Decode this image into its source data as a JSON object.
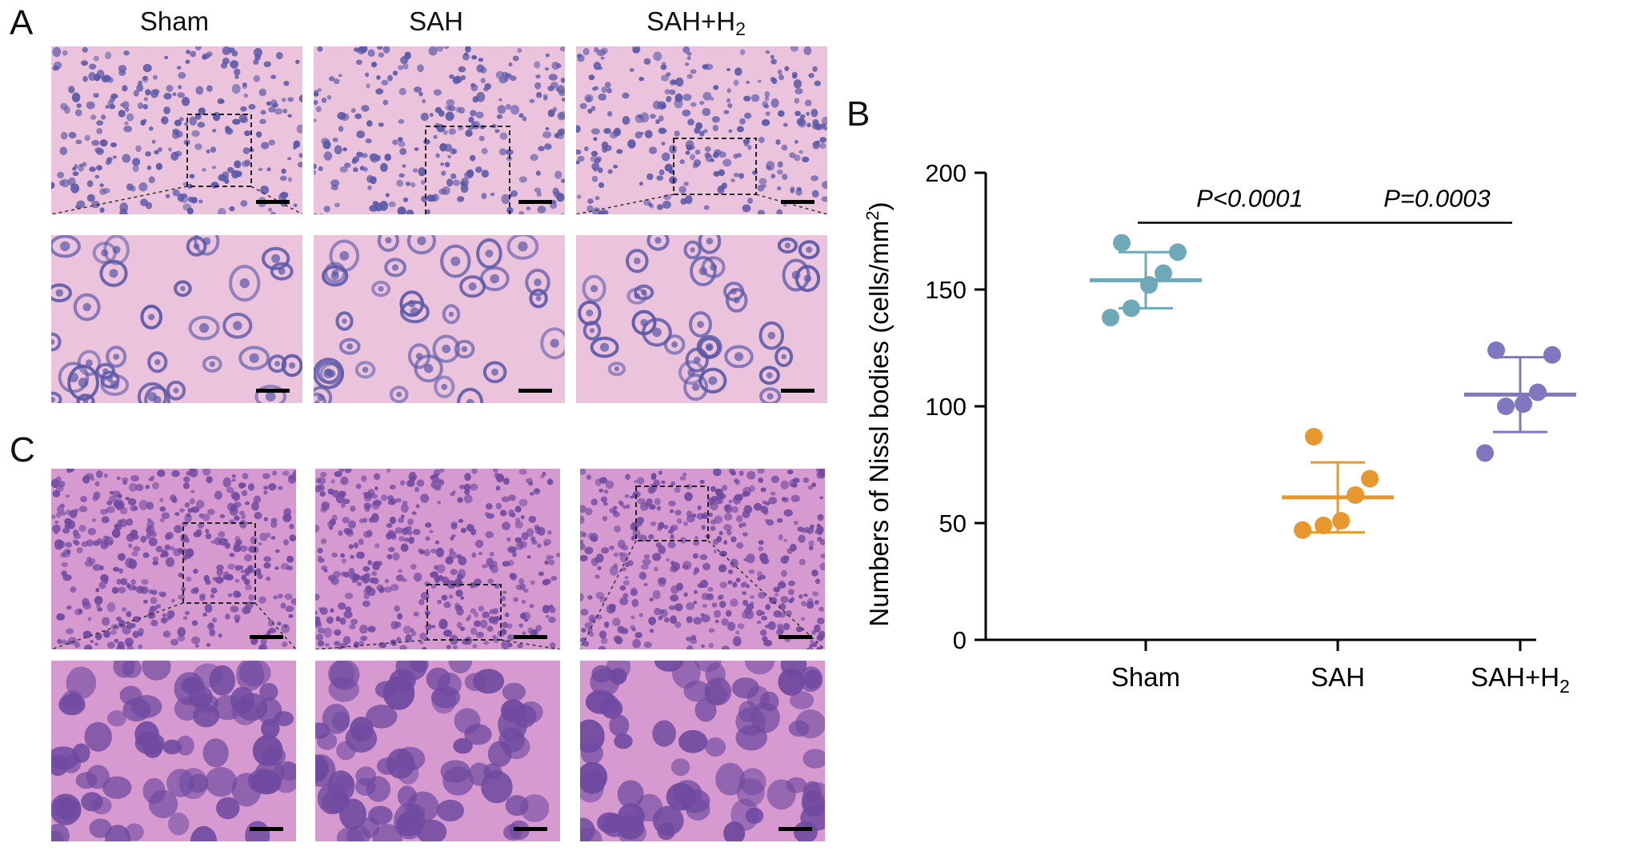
{
  "panels": {
    "a_label": "A",
    "b_label": "B",
    "c_label": "C"
  },
  "column_labels": [
    {
      "base": "Sham",
      "sub": ""
    },
    {
      "base": "SAH",
      "sub": ""
    },
    {
      "base": "SAH+H",
      "sub": "2"
    }
  ],
  "colors": {
    "nissl_bg": "#ebc3dc",
    "nissl_cell": "#5a58a8",
    "he_bg": "#d79ad0",
    "he_cell": "#6f4aa0",
    "sham": "#6fa8b8",
    "sah": "#e8962e",
    "sah_h2": "#7f77bf"
  },
  "chart_data": {
    "type": "scatter",
    "ylabel": "Numbers of Nissl bodies (cells/mm",
    "ylabel_sup": "2",
    "ylabel_end": ")",
    "ylim": [
      0,
      200
    ],
    "yticks": [
      0,
      50,
      100,
      150,
      200
    ],
    "categories": [
      {
        "base": "Sham",
        "sub": ""
      },
      {
        "base": "SAH",
        "sub": ""
      },
      {
        "base": "SAH+H",
        "sub": "2"
      }
    ],
    "series": [
      {
        "points": [
          138,
          142,
          152,
          157,
          166,
          170
        ],
        "mean": 154,
        "sd_low": 142,
        "sd_high": 166
      },
      {
        "points": [
          47,
          49,
          51,
          62,
          69,
          87
        ],
        "mean": 61,
        "sd_low": 46,
        "sd_high": 76
      },
      {
        "points": [
          80,
          100,
          101,
          106,
          122,
          124
        ],
        "mean": 105,
        "sd_low": 89,
        "sd_high": 121
      }
    ],
    "annotations": [
      {
        "text": "P<0.0001",
        "from": 0,
        "to": 1,
        "y": 182
      },
      {
        "text": "P=0.0003",
        "from": 1,
        "to": 2,
        "y": 182
      }
    ]
  }
}
